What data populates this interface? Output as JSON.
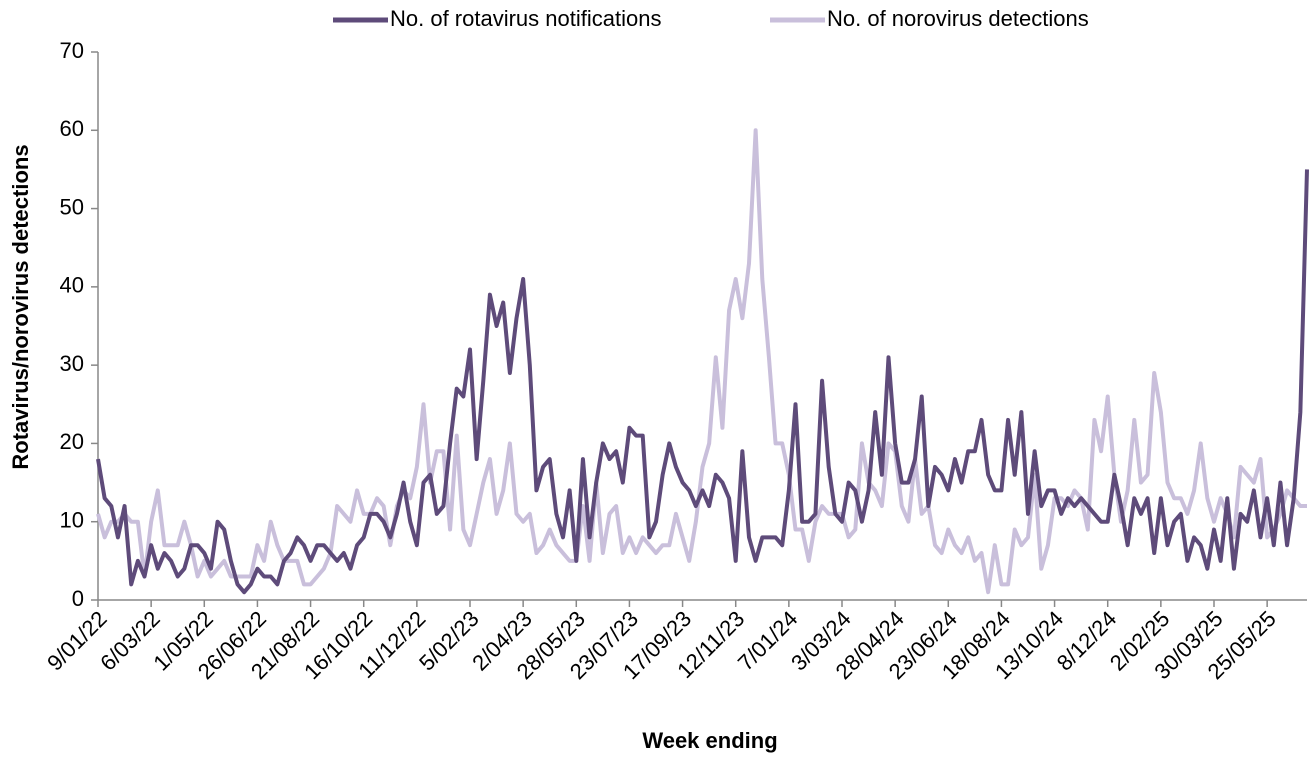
{
  "chart_data": {
    "type": "line",
    "xlabel": "Week ending",
    "ylabel": "Rotavirus/norovirus detections",
    "legend": "top",
    "ylim": [
      0,
      70
    ],
    "yticks": [
      0,
      10,
      20,
      30,
      40,
      50,
      60,
      70
    ],
    "categories": [
      "9/01/22",
      null,
      null,
      null,
      null,
      null,
      null,
      null,
      "6/03/22",
      null,
      null,
      null,
      null,
      null,
      null,
      null,
      "1/05/22",
      null,
      null,
      null,
      null,
      null,
      null,
      null,
      "26/06/22",
      null,
      null,
      null,
      null,
      null,
      null,
      null,
      "21/08/22",
      null,
      null,
      null,
      null,
      null,
      null,
      null,
      "16/10/22",
      null,
      null,
      null,
      null,
      null,
      null,
      null,
      "11/12/22",
      null,
      null,
      null,
      null,
      null,
      null,
      null,
      "5/02/23",
      null,
      null,
      null,
      null,
      null,
      null,
      null,
      "2/04/23",
      null,
      null,
      null,
      null,
      null,
      null,
      null,
      "28/05/23",
      null,
      null,
      null,
      null,
      null,
      null,
      null,
      "23/07/23",
      null,
      null,
      null,
      null,
      null,
      null,
      null,
      "17/09/23",
      null,
      null,
      null,
      null,
      null,
      null,
      null,
      "12/11/23",
      null,
      null,
      null,
      null,
      null,
      null,
      null,
      "7/01/24",
      null,
      null,
      null,
      null,
      null,
      null,
      null,
      "3/03/24",
      null,
      null,
      null,
      null,
      null,
      null,
      null,
      "28/04/24",
      null,
      null,
      null,
      null,
      null,
      null,
      null,
      "23/06/24",
      null,
      null,
      null,
      null,
      null,
      null,
      null,
      "18/08/24",
      null,
      null,
      null,
      null,
      null,
      null,
      null,
      "13/10/24",
      null,
      null,
      null,
      null,
      null,
      null,
      null,
      "8/12/24",
      null,
      null,
      null,
      null,
      null,
      null,
      null,
      "2/02/25",
      null,
      null,
      null,
      null,
      null,
      null,
      null,
      "30/03/25",
      null,
      null,
      null,
      null,
      null,
      null,
      null,
      "25/05/25",
      null,
      null,
      null,
      null,
      null,
      null
    ],
    "series": [
      {
        "name": "No. of rotavirus notifications",
        "color": "#5e4b7a",
        "values": [
          18,
          13,
          12,
          8,
          12,
          2,
          5,
          3,
          7,
          4,
          6,
          5,
          3,
          4,
          7,
          7,
          6,
          4,
          10,
          9,
          5,
          2,
          1,
          2,
          4,
          3,
          3,
          2,
          5,
          6,
          8,
          7,
          5,
          7,
          7,
          6,
          5,
          6,
          4,
          7,
          8,
          11,
          11,
          10,
          8,
          11,
          15,
          10,
          7,
          15,
          16,
          11,
          12,
          20,
          27,
          26,
          32,
          18,
          28,
          39,
          35,
          38,
          29,
          36,
          41,
          30,
          14,
          17,
          18,
          11,
          8,
          14,
          5,
          18,
          8,
          15,
          20,
          18,
          19,
          15,
          22,
          21,
          21,
          8,
          10,
          16,
          20,
          17,
          15,
          14,
          12,
          14,
          12,
          16,
          15,
          13,
          5,
          19,
          8,
          5,
          8,
          8,
          8,
          7,
          14,
          25,
          10,
          10,
          11,
          28,
          17,
          11,
          10,
          15,
          14,
          10,
          14,
          24,
          16,
          31,
          20,
          15,
          15,
          18,
          26,
          12,
          17,
          16,
          14,
          18,
          15,
          19,
          19,
          23,
          16,
          14,
          14,
          23,
          16,
          24,
          11,
          19,
          12,
          14,
          14,
          11,
          13,
          12,
          13,
          12,
          11,
          10,
          10,
          16,
          12,
          7,
          13,
          11,
          13,
          6,
          13,
          7,
          10,
          11,
          5,
          8,
          7,
          4,
          9,
          5,
          13,
          4,
          11,
          10,
          14,
          8,
          13,
          7,
          15,
          7,
          13,
          24,
          55
        ]
      },
      {
        "name": "No. of norovirus detections",
        "color": "#c9bfdb",
        "values": [
          11,
          8,
          10,
          10,
          11,
          10,
          10,
          3,
          10,
          14,
          7,
          7,
          7,
          10,
          7,
          3,
          5,
          3,
          4,
          5,
          3,
          3,
          3,
          3,
          7,
          5,
          10,
          7,
          5,
          5,
          5,
          2,
          2,
          3,
          4,
          6,
          12,
          11,
          10,
          14,
          11,
          11,
          13,
          12,
          7,
          12,
          14,
          13,
          17,
          25,
          15,
          19,
          19,
          9,
          21,
          9,
          7,
          11,
          15,
          18,
          11,
          14,
          20,
          11,
          10,
          11,
          6,
          7,
          9,
          7,
          6,
          5,
          5,
          12,
          5,
          15,
          6,
          11,
          12,
          6,
          8,
          6,
          8,
          7,
          6,
          7,
          7,
          11,
          8,
          5,
          10,
          17,
          20,
          31,
          22,
          37,
          41,
          36,
          43,
          60,
          41,
          31,
          20,
          20,
          16,
          9,
          9,
          5,
          10,
          12,
          11,
          11,
          11,
          8,
          9,
          20,
          15,
          14,
          12,
          20,
          19,
          12,
          10,
          18,
          11,
          12,
          7,
          6,
          9,
          7,
          6,
          8,
          5,
          6,
          1,
          7,
          2,
          2,
          9,
          7,
          8,
          16,
          4,
          7,
          13,
          13,
          12,
          14,
          13,
          9,
          23,
          19,
          26,
          16,
          10,
          14,
          23,
          15,
          16,
          29,
          24,
          15,
          13,
          13,
          11,
          14,
          20,
          13,
          10,
          13,
          11,
          8,
          17,
          16,
          15,
          18,
          8,
          9,
          11,
          14,
          13,
          12,
          12
        ]
      }
    ]
  }
}
